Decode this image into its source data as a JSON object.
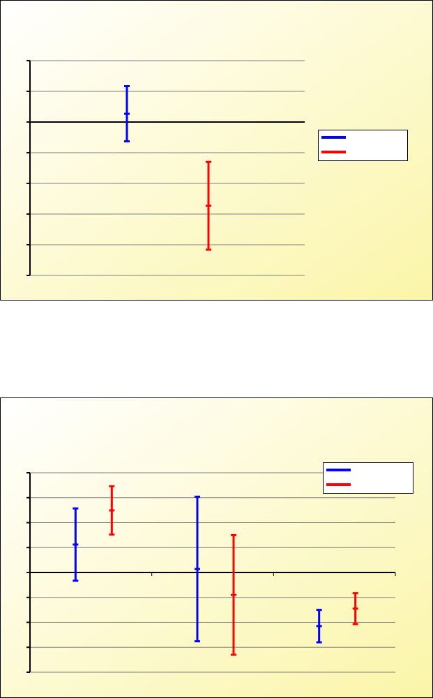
{
  "chart_data": [
    {
      "type": "errorbar",
      "categories": [
        null
      ],
      "series": [
        {
          "color": "#0000ff",
          "values": [
            0.27
          ],
          "errors": [
            0.9
          ]
        },
        {
          "color": "#ff0000",
          "values": [
            -2.73
          ],
          "errors": [
            1.43
          ]
        }
      ],
      "ylim": [
        -5,
        2
      ],
      "yticks": [
        -5,
        -4,
        -3,
        -2,
        -1,
        0,
        1,
        2
      ],
      "grid": true,
      "legend": "right"
    },
    {
      "type": "errorbar",
      "categories": [
        null,
        null,
        null
      ],
      "series": [
        {
          "color": "#0000ff",
          "values": [
            1.12,
            0.14,
            -2.15
          ],
          "errors": [
            1.45,
            2.9,
            0.65
          ]
        },
        {
          "color": "#ff0000",
          "values": [
            2.49,
            -0.9,
            -1.45
          ],
          "errors": [
            0.97,
            2.4,
            0.62
          ]
        }
      ],
      "ylim": [
        -4,
        4
      ],
      "yticks": [
        -4,
        -3,
        -2,
        -1,
        0,
        1,
        2,
        3,
        4
      ],
      "grid": true,
      "legend": "top-right"
    }
  ]
}
